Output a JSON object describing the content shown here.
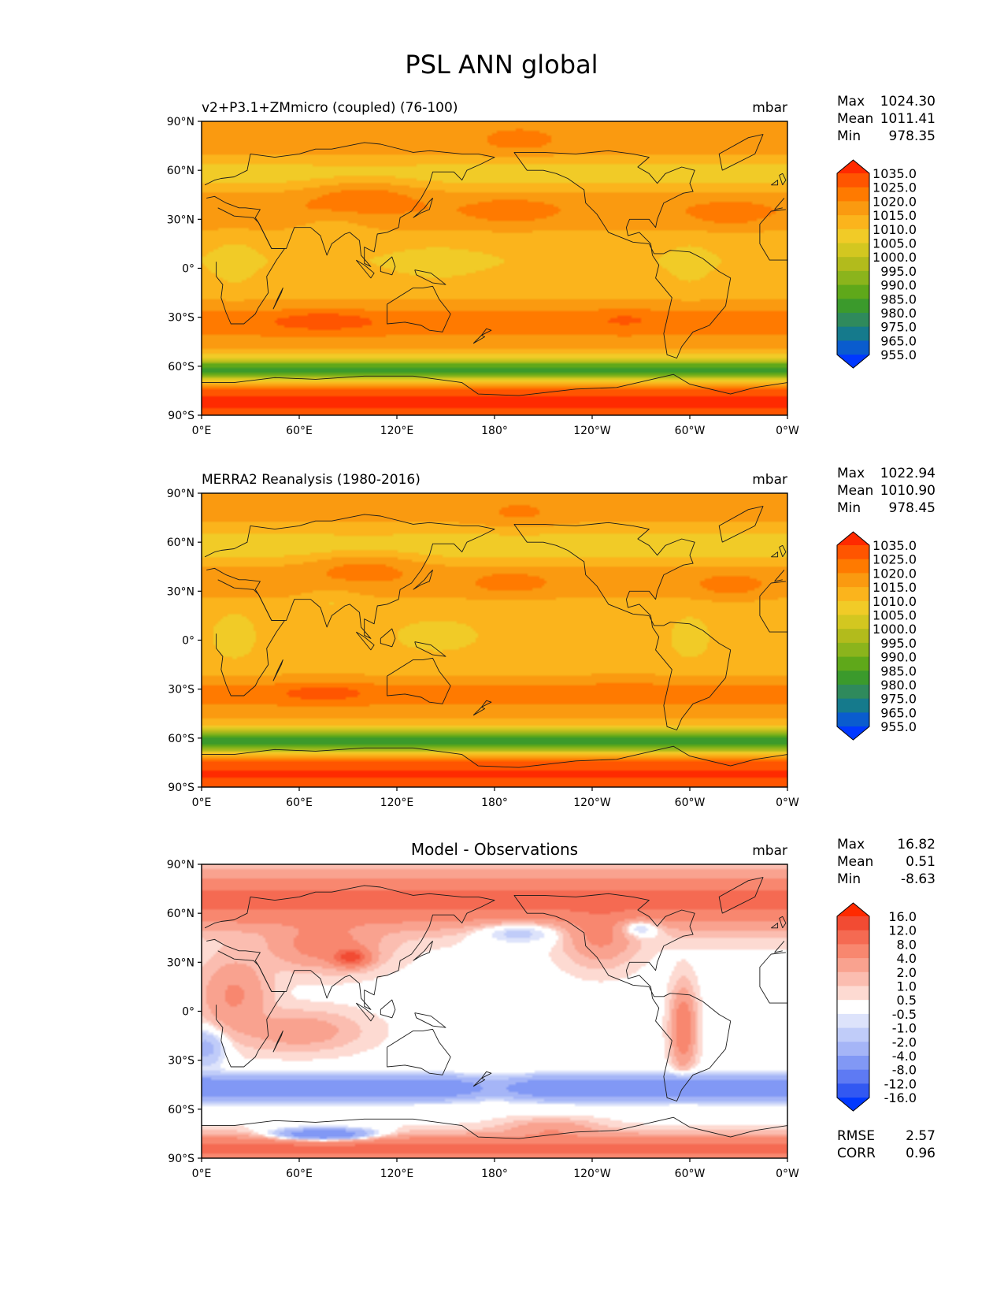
{
  "chart_data": {
    "type": "contour-map",
    "suptitle": "PSL ANN global",
    "x_ticks": [
      "0°E",
      "60°E",
      "120°E",
      "180°",
      "120°W",
      "60°W",
      "0°W"
    ],
    "y_ticks": [
      "90°N",
      "60°N",
      "30°N",
      "0°",
      "30°S",
      "60°S",
      "90°S"
    ],
    "xlim": [
      0,
      360
    ],
    "ylim": [
      -90,
      90
    ],
    "panels": [
      {
        "id": "test",
        "title": "v2+P3.1+ZMmicro (coupled) (76-100)",
        "units": "mbar",
        "stat_labels": [
          "Max",
          "Mean",
          "Min"
        ],
        "stat_values": [
          "1024.30",
          "1011.41",
          "978.35"
        ],
        "levels": [
          "1035.0",
          "1025.0",
          "1020.0",
          "1015.0",
          "1010.0",
          "1005.0",
          "1000.0",
          "995.0",
          "990.0",
          "985.0",
          "980.0",
          "975.0",
          "965.0",
          "955.0"
        ],
        "colors": [
          "#ff2a00",
          "#ff5500",
          "#ff7a00",
          "#fa9a10",
          "#fbb41c",
          "#f1cb27",
          "#d3c720",
          "#b2bb1c",
          "#8bb41c",
          "#5fa81a",
          "#3b9a2c",
          "#2f8a5c",
          "#157a8c",
          "#0a5cce",
          "#0038ff"
        ]
      },
      {
        "id": "reference",
        "title": "MERRA2 Reanalysis (1980-2016)",
        "units": "mbar",
        "stat_labels": [
          "Max",
          "Mean",
          "Min"
        ],
        "stat_values": [
          "1022.94",
          "1010.90",
          "978.45"
        ],
        "levels": [
          "1035.0",
          "1025.0",
          "1020.0",
          "1015.0",
          "1010.0",
          "1005.0",
          "1000.0",
          "995.0",
          "990.0",
          "985.0",
          "980.0",
          "975.0",
          "965.0",
          "955.0"
        ],
        "colors": [
          "#ff2a00",
          "#ff5500",
          "#ff7a00",
          "#fa9a10",
          "#fbb41c",
          "#f1cb27",
          "#d3c720",
          "#b2bb1c",
          "#8bb41c",
          "#5fa81a",
          "#3b9a2c",
          "#2f8a5c",
          "#157a8c",
          "#0a5cce",
          "#0038ff"
        ]
      },
      {
        "id": "difference",
        "title": "Model - Observations",
        "units": "mbar",
        "stat_labels": [
          "Max",
          "Mean",
          "Min"
        ],
        "stat_values": [
          "16.82",
          "0.51",
          "-8.63"
        ],
        "levels": [
          "16.0",
          "12.0",
          "8.0",
          "4.0",
          "2.0",
          "1.0",
          "0.5",
          "-0.5",
          "-1.0",
          "-2.0",
          "-4.0",
          "-8.0",
          "-12.0",
          "-16.0"
        ],
        "colors": [
          "#ff2a00",
          "#f24b33",
          "#f56a52",
          "#f8876f",
          "#f9a28f",
          "#fbbdb0",
          "#fddad2",
          "#ffffff",
          "#dde3fb",
          "#c0ccf9",
          "#a5b5f7",
          "#8198f5",
          "#5e7af3",
          "#3258f2",
          "#0038ff"
        ],
        "extra_stat_labels": [
          "RMSE",
          "CORR"
        ],
        "extra_stat_values": [
          "2.57",
          "0.96"
        ]
      }
    ]
  }
}
